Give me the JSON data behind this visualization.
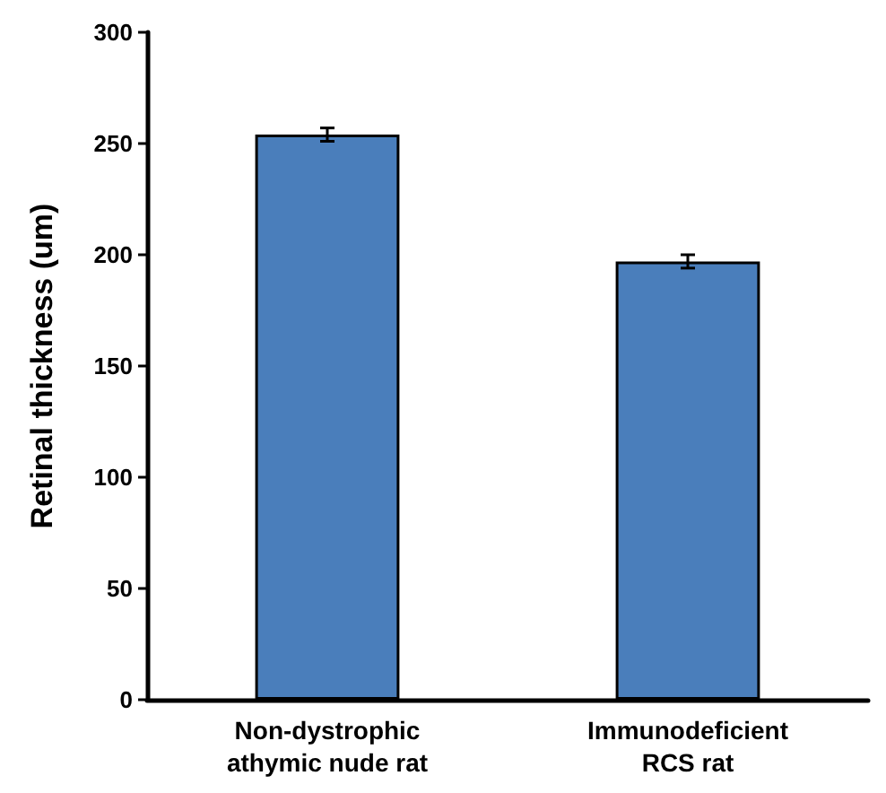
{
  "chart_data": {
    "type": "bar",
    "ylabel": "Retinal thickness (um)",
    "categories": [
      "Non-dystrophic\nathymic nude rat",
      "Immunodeficient\nRCS rat"
    ],
    "values": [
      254,
      197
    ],
    "errors": [
      3,
      3
    ],
    "color": "#4a7ebb",
    "ylim": [
      0,
      300
    ],
    "yticks": [
      0,
      50,
      100,
      150,
      200,
      250,
      300
    ],
    "grid": false
  }
}
